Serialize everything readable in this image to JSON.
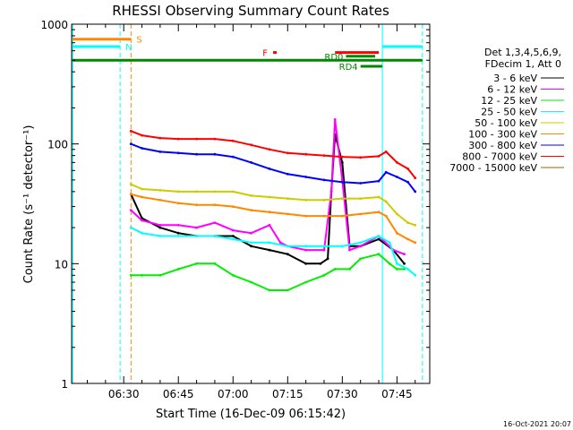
{
  "chart_data": {
    "type": "line",
    "title": "RHESSI Observing Summary Count Rates",
    "xlabel": "Start Time (16-Dec-09 06:15:42)",
    "ylabel": "Count Rate (s⁻¹ detector⁻¹)",
    "yscale": "log",
    "ylim": [
      1,
      1000
    ],
    "xlim": [
      "06:15:42",
      "07:54:00"
    ],
    "x_ticks": [
      "06:30",
      "06:45",
      "07:00",
      "07:15",
      "07:30",
      "07:45"
    ],
    "y_ticks": [
      "1",
      "10",
      "100",
      "1000"
    ],
    "legend_header": [
      "Det 1,3,4,5,6,9,",
      "FDecim 1, Att 0"
    ],
    "legend_position": "right",
    "footer_timestamp": "16-Oct-2021 20:07",
    "series": [
      {
        "name": "3 - 6 keV",
        "color": "#000000",
        "points": [
          [
            "06:32",
            38
          ],
          [
            "06:35",
            24
          ],
          [
            "06:40",
            20
          ],
          [
            "06:45",
            18
          ],
          [
            "06:50",
            17
          ],
          [
            "06:55",
            17
          ],
          [
            "07:00",
            17
          ],
          [
            "07:05",
            14
          ],
          [
            "07:10",
            13
          ],
          [
            "07:15",
            12
          ],
          [
            "07:20",
            10
          ],
          [
            "07:24",
            10
          ],
          [
            "07:26",
            11
          ],
          [
            "07:27",
            40
          ],
          [
            "07:28",
            120
          ],
          [
            "07:30",
            70
          ],
          [
            "07:32",
            14
          ],
          [
            "07:35",
            14
          ],
          [
            "07:40",
            16
          ],
          [
            "07:44",
            13
          ],
          [
            "07:47",
            10
          ]
        ]
      },
      {
        "name": "6 - 12 keV",
        "color": "#ff00ff",
        "points": [
          [
            "06:32",
            28
          ],
          [
            "06:35",
            23
          ],
          [
            "06:40",
            21
          ],
          [
            "06:45",
            21
          ],
          [
            "06:50",
            20
          ],
          [
            "06:55",
            22
          ],
          [
            "07:00",
            19
          ],
          [
            "07:05",
            18
          ],
          [
            "07:10",
            21
          ],
          [
            "07:13",
            15
          ],
          [
            "07:15",
            14
          ],
          [
            "07:20",
            13
          ],
          [
            "07:25",
            13
          ],
          [
            "07:27",
            40
          ],
          [
            "07:28",
            160
          ],
          [
            "07:30",
            50
          ],
          [
            "07:32",
            13
          ],
          [
            "07:35",
            14
          ],
          [
            "07:40",
            17
          ],
          [
            "07:44",
            13
          ],
          [
            "07:47",
            12
          ]
        ]
      },
      {
        "name": "12 - 25 keV",
        "color": "#00ee00",
        "points": [
          [
            "06:32",
            8
          ],
          [
            "06:35",
            8
          ],
          [
            "06:40",
            8
          ],
          [
            "06:45",
            9
          ],
          [
            "06:50",
            10
          ],
          [
            "06:55",
            10
          ],
          [
            "07:00",
            8
          ],
          [
            "07:05",
            7
          ],
          [
            "07:10",
            6
          ],
          [
            "07:15",
            6
          ],
          [
            "07:20",
            7
          ],
          [
            "07:25",
            8
          ],
          [
            "07:28",
            9
          ],
          [
            "07:32",
            9
          ],
          [
            "07:35",
            11
          ],
          [
            "07:40",
            12
          ],
          [
            "07:43",
            10
          ],
          [
            "07:45",
            9
          ],
          [
            "07:47",
            9
          ]
        ]
      },
      {
        "name": "25 - 50 keV",
        "color": "#00ffff",
        "points": [
          [
            "06:32",
            20
          ],
          [
            "06:35",
            18
          ],
          [
            "06:40",
            17
          ],
          [
            "06:45",
            17
          ],
          [
            "06:50",
            17
          ],
          [
            "06:55",
            17
          ],
          [
            "07:00",
            16
          ],
          [
            "07:05",
            15
          ],
          [
            "07:10",
            15
          ],
          [
            "07:15",
            14
          ],
          [
            "07:20",
            14
          ],
          [
            "07:25",
            14
          ],
          [
            "07:30",
            14
          ],
          [
            "07:35",
            15
          ],
          [
            "07:40",
            17
          ],
          [
            "07:43",
            15
          ],
          [
            "07:45",
            10
          ],
          [
            "07:48",
            9
          ],
          [
            "07:50",
            8
          ]
        ]
      },
      {
        "name": "50 - 100 keV",
        "color": "#cccc00",
        "points": [
          [
            "06:32",
            46
          ],
          [
            "06:35",
            42
          ],
          [
            "06:40",
            41
          ],
          [
            "06:45",
            40
          ],
          [
            "06:50",
            40
          ],
          [
            "06:55",
            40
          ],
          [
            "07:00",
            40
          ],
          [
            "07:05",
            37
          ],
          [
            "07:10",
            36
          ],
          [
            "07:15",
            35
          ],
          [
            "07:20",
            34
          ],
          [
            "07:25",
            34
          ],
          [
            "07:30",
            35
          ],
          [
            "07:35",
            35
          ],
          [
            "07:40",
            36
          ],
          [
            "07:42",
            33
          ],
          [
            "07:45",
            26
          ],
          [
            "07:48",
            22
          ],
          [
            "07:50",
            21
          ]
        ]
      },
      {
        "name": "100 - 300 keV",
        "color": "#ff8800",
        "points": [
          [
            "06:32",
            38
          ],
          [
            "06:35",
            36
          ],
          [
            "06:40",
            34
          ],
          [
            "06:45",
            32
          ],
          [
            "06:50",
            31
          ],
          [
            "06:55",
            31
          ],
          [
            "07:00",
            30
          ],
          [
            "07:05",
            28
          ],
          [
            "07:10",
            27
          ],
          [
            "07:15",
            26
          ],
          [
            "07:20",
            25
          ],
          [
            "07:25",
            25
          ],
          [
            "07:30",
            25
          ],
          [
            "07:35",
            26
          ],
          [
            "07:40",
            27
          ],
          [
            "07:42",
            25
          ],
          [
            "07:45",
            18
          ],
          [
            "07:48",
            16
          ],
          [
            "07:50",
            15
          ]
        ]
      },
      {
        "name": "300 - 800 keV",
        "color": "#0000ff",
        "points": [
          [
            "06:32",
            100
          ],
          [
            "06:35",
            92
          ],
          [
            "06:40",
            86
          ],
          [
            "06:45",
            84
          ],
          [
            "06:50",
            82
          ],
          [
            "06:55",
            82
          ],
          [
            "07:00",
            78
          ],
          [
            "07:05",
            70
          ],
          [
            "07:10",
            62
          ],
          [
            "07:15",
            56
          ],
          [
            "07:20",
            53
          ],
          [
            "07:25",
            50
          ],
          [
            "07:30",
            48
          ],
          [
            "07:35",
            47
          ],
          [
            "07:40",
            49
          ],
          [
            "07:42",
            58
          ],
          [
            "07:45",
            53
          ],
          [
            "07:48",
            48
          ],
          [
            "07:50",
            40
          ]
        ]
      },
      {
        "name": "800 - 7000 keV",
        "color": "#ff0000",
        "points": [
          [
            "06:32",
            128
          ],
          [
            "06:35",
            118
          ],
          [
            "06:40",
            112
          ],
          [
            "06:45",
            110
          ],
          [
            "06:50",
            110
          ],
          [
            "06:55",
            110
          ],
          [
            "07:00",
            106
          ],
          [
            "07:05",
            98
          ],
          [
            "07:10",
            90
          ],
          [
            "07:15",
            84
          ],
          [
            "07:20",
            82
          ],
          [
            "07:25",
            80
          ],
          [
            "07:30",
            78
          ],
          [
            "07:35",
            77
          ],
          [
            "07:40",
            79
          ],
          [
            "07:42",
            86
          ],
          [
            "07:45",
            70
          ],
          [
            "07:48",
            62
          ],
          [
            "07:50",
            52
          ]
        ]
      },
      {
        "name": "7000 - 15000 keV",
        "color": "#996600",
        "points": []
      }
    ],
    "annotations": [
      {
        "label": "S",
        "color": "#ff8800",
        "level": 750,
        "x_start": "06:16",
        "x_end": "06:32"
      },
      {
        "label": "N",
        "color": "#00ffff",
        "level": 650,
        "x_start": "06:16",
        "x_end": "06:29"
      },
      {
        "label": "N",
        "color": "#00ffff",
        "level": 650,
        "x_start": "07:41",
        "x_end": "07:52",
        "show_label": false
      },
      {
        "label": "F",
        "color": "#ff0000",
        "level": 580,
        "x_start": "07:11",
        "x_end": "07:12"
      },
      {
        "label": "F",
        "color": "#ff0000",
        "level": 580,
        "x_start": "07:28",
        "x_end": "07:40",
        "show_label": false
      },
      {
        "label": "RD0",
        "color": "#008800",
        "level": 540,
        "x_start": "07:31",
        "x_end": "07:39",
        "label_position": "left"
      },
      {
        "label": "RD4",
        "color": "#008800",
        "level": 445,
        "x_start": "07:35",
        "x_end": "07:41",
        "label_position": "left"
      },
      {
        "label": "",
        "color": "#008800",
        "level": 500,
        "x_start": "06:16",
        "x_end": "07:52"
      }
    ],
    "vertical_lines": [
      {
        "time": "06:16",
        "color": "#00ffff",
        "style": "solid"
      },
      {
        "time": "06:29",
        "color": "#00ffff",
        "style": "dashed"
      },
      {
        "time": "06:32",
        "color": "#ff8800",
        "style": "dashed"
      },
      {
        "time": "07:41",
        "color": "#00ffff",
        "style": "solid"
      },
      {
        "time": "07:52",
        "color": "#00ffff",
        "style": "dashed"
      }
    ]
  }
}
